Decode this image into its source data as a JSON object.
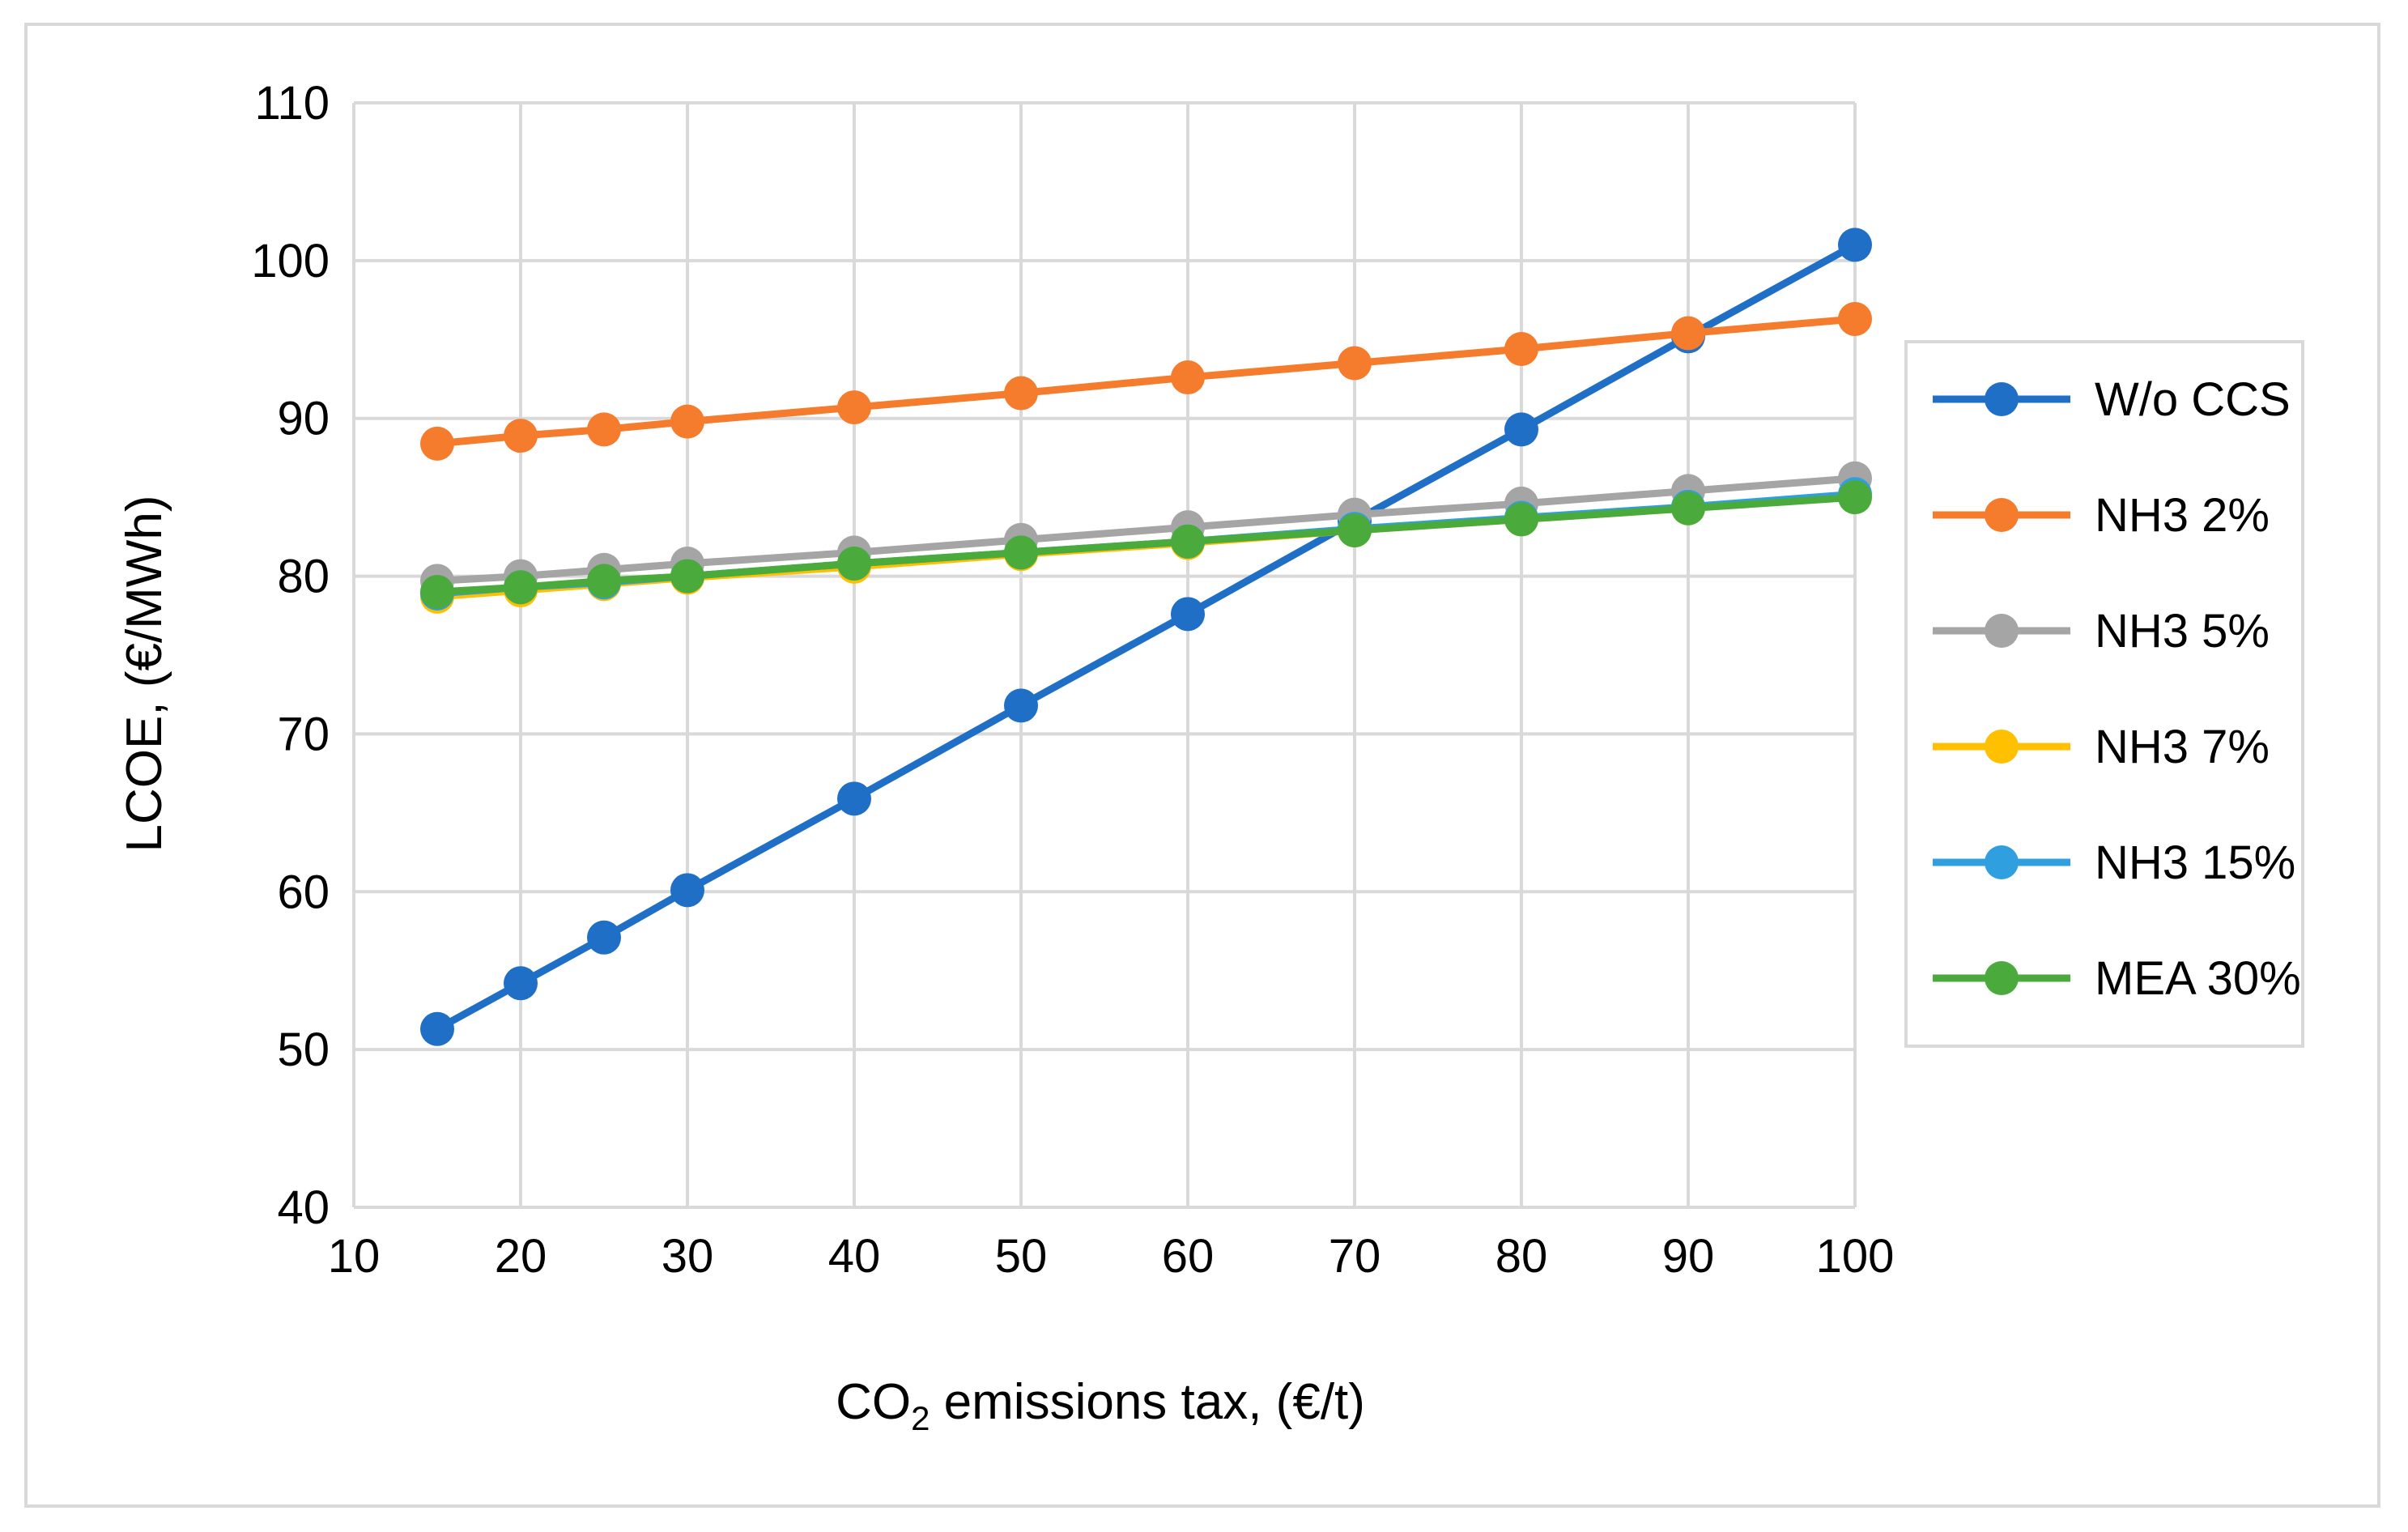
{
  "chart_data": {
    "type": "line",
    "title": "",
    "xlabel_main": "CO",
    "xlabel_sub": "2",
    "xlabel_rest": " emissions tax, (€/t)",
    "ylabel": "LCOE, (€/MWh)",
    "xlim": [
      10,
      100
    ],
    "ylim": [
      40,
      110
    ],
    "xticks": [
      10,
      20,
      30,
      40,
      50,
      60,
      70,
      80,
      90,
      100
    ],
    "yticks": [
      40,
      50,
      60,
      70,
      80,
      90,
      100,
      110
    ],
    "grid": true,
    "legend_position": "right",
    "x": [
      15,
      20,
      25,
      30,
      40,
      50,
      60,
      70,
      80,
      90,
      100
    ],
    "series": [
      {
        "name": "W/o CCS",
        "color": "#1f6fc6",
        "values": [
          51.3,
          54.2,
          57.1,
          60.1,
          65.9,
          71.8,
          77.6,
          83.5,
          89.3,
          95.2,
          101.0
        ]
      },
      {
        "name": "NH3 2%",
        "color": "#f47c2c",
        "values": [
          88.4,
          88.9,
          89.3,
          89.8,
          90.7,
          91.6,
          92.6,
          93.5,
          94.4,
          95.4,
          96.3
        ]
      },
      {
        "name": "NH3 5%",
        "color": "#a5a5a5",
        "values": [
          79.7,
          80.0,
          80.4,
          80.8,
          81.5,
          82.3,
          83.1,
          83.9,
          84.6,
          85.4,
          86.2
        ]
      },
      {
        "name": "NH3 7%",
        "color": "#ffc000",
        "values": [
          78.7,
          79.1,
          79.5,
          79.9,
          80.6,
          81.4,
          82.1,
          82.9,
          83.6,
          84.3,
          85.1
        ]
      },
      {
        "name": "NH3 15%",
        "color": "#2f9fe0",
        "values": [
          78.9,
          79.3,
          79.6,
          80.0,
          80.8,
          81.5,
          82.2,
          83.0,
          83.7,
          84.4,
          85.2
        ]
      },
      {
        "name": "MEA 30%",
        "color": "#4aab3c",
        "values": [
          79.0,
          79.3,
          79.7,
          80.0,
          80.8,
          81.5,
          82.2,
          82.9,
          83.6,
          84.3,
          85.0
        ]
      }
    ]
  }
}
